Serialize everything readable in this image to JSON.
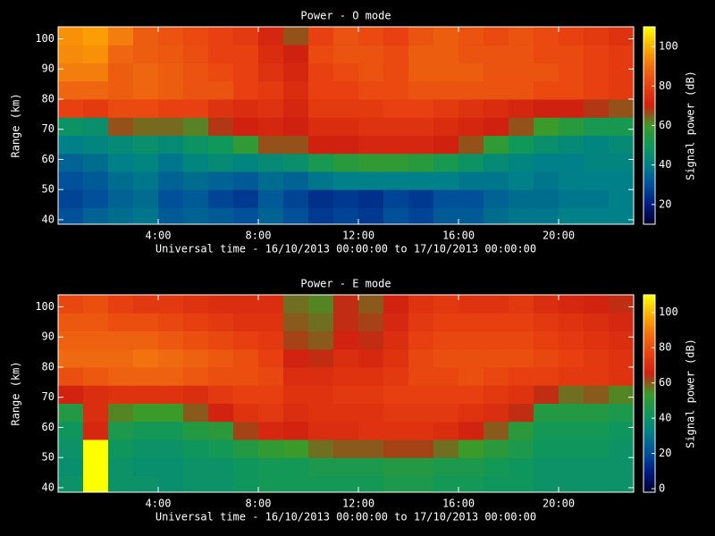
{
  "chart_data": [
    {
      "type": "heatmap",
      "title": "Power - O mode",
      "xlabel": "Universal time - 16/10/2013 00:00:00 to 17/10/2013 00:00:00",
      "ylabel": "Range (km)",
      "colorbar_label": "Signal power (dB)",
      "x_bins": [
        0,
        1,
        2,
        3,
        4,
        5,
        6,
        7,
        8,
        9,
        10,
        11,
        12,
        13,
        14,
        15,
        16,
        17,
        18,
        19,
        20,
        21,
        22,
        23
      ],
      "y_bins": [
        38.5,
        44,
        50,
        56,
        62,
        68,
        74,
        80,
        86,
        92,
        98,
        104
      ],
      "values": [
        [
          30,
          34,
          36,
          38,
          32,
          34,
          32,
          30,
          34,
          30,
          26,
          28,
          26,
          30,
          28,
          32,
          32,
          36,
          38,
          38,
          40,
          40,
          40
        ],
        [
          28,
          30,
          34,
          36,
          30,
          32,
          28,
          26,
          32,
          28,
          24,
          26,
          24,
          28,
          26,
          30,
          30,
          34,
          36,
          36,
          38,
          38,
          40
        ],
        [
          30,
          32,
          36,
          38,
          34,
          36,
          34,
          32,
          36,
          34,
          38,
          40,
          40,
          40,
          40,
          40,
          38,
          38,
          40,
          38,
          40,
          40,
          40
        ],
        [
          34,
          36,
          40,
          42,
          38,
          42,
          44,
          42,
          44,
          46,
          52,
          56,
          58,
          58,
          56,
          52,
          48,
          44,
          42,
          40,
          40,
          42,
          42
        ],
        [
          40,
          42,
          44,
          46,
          44,
          48,
          50,
          58,
          66,
          66,
          70,
          70,
          72,
          72,
          72,
          70,
          66,
          58,
          50,
          46,
          44,
          42,
          44
        ],
        [
          48,
          46,
          66,
          64,
          64,
          62,
          68,
          70,
          72,
          70,
          74,
          74,
          76,
          76,
          76,
          74,
          72,
          70,
          66,
          60,
          56,
          52,
          52
        ],
        [
          80,
          78,
          82,
          82,
          80,
          80,
          76,
          74,
          76,
          72,
          78,
          78,
          78,
          80,
          80,
          78,
          76,
          74,
          72,
          70,
          70,
          68,
          66
        ],
        [
          88,
          88,
          86,
          88,
          86,
          84,
          84,
          80,
          78,
          74,
          80,
          80,
          82,
          82,
          84,
          84,
          84,
          84,
          84,
          82,
          82,
          80,
          78
        ],
        [
          92,
          92,
          86,
          88,
          86,
          84,
          82,
          80,
          76,
          72,
          80,
          82,
          84,
          82,
          86,
          86,
          86,
          84,
          84,
          84,
          82,
          80,
          78
        ],
        [
          94,
          95,
          88,
          86,
          85,
          83,
          80,
          80,
          74,
          70,
          82,
          84,
          84,
          82,
          86,
          86,
          84,
          84,
          84,
          82,
          82,
          80,
          78
        ],
        [
          95,
          97,
          92,
          86,
          84,
          82,
          80,
          78,
          72,
          66,
          80,
          84,
          82,
          80,
          84,
          86,
          84,
          82,
          84,
          82,
          80,
          78,
          76
        ]
      ],
      "xlim": [
        0,
        23
      ],
      "ylim": [
        38.5,
        104
      ],
      "xticks": [
        {
          "value": 4,
          "label": "4:00"
        },
        {
          "value": 8,
          "label": "8:00"
        },
        {
          "value": 12,
          "label": "12:00"
        },
        {
          "value": 16,
          "label": "16:00"
        },
        {
          "value": 20,
          "label": "20:00"
        }
      ],
      "yticks": [
        40,
        50,
        60,
        70,
        80,
        90,
        100
      ],
      "clim": [
        10,
        110
      ],
      "cticks": [
        20,
        40,
        60,
        80,
        100
      ],
      "colors": [
        "#000028",
        "#001a80",
        "#00509a",
        "#008088",
        "#10985a",
        "#3a9a2a",
        "#d02010",
        "#e84010",
        "#f07010",
        "#ffb000",
        "#ffff00"
      ]
    },
    {
      "type": "heatmap",
      "title": "Power - E mode",
      "xlabel": "Universal time - 16/10/2013 00:00:00 to 17/10/2013 00:00:00",
      "ylabel": "Range (km)",
      "colorbar_label": "Signal power (dB)",
      "x_bins": [
        0,
        1,
        2,
        3,
        4,
        5,
        6,
        7,
        8,
        9,
        10,
        11,
        12,
        13,
        14,
        15,
        16,
        17,
        18,
        19,
        20,
        21,
        22,
        23
      ],
      "y_bins": [
        38.5,
        44,
        50,
        56,
        62,
        68,
        74,
        80,
        86,
        92,
        98,
        104
      ],
      "values": [
        [
          40,
          110,
          40,
          40,
          38,
          40,
          40,
          42,
          44,
          44,
          44,
          44,
          44,
          46,
          46,
          44,
          44,
          42,
          42,
          40,
          40,
          40,
          40
        ],
        [
          38,
          110,
          40,
          38,
          38,
          40,
          40,
          42,
          44,
          44,
          46,
          46,
          46,
          48,
          48,
          46,
          46,
          44,
          42,
          40,
          40,
          40,
          40
        ],
        [
          40,
          110,
          42,
          40,
          40,
          42,
          44,
          48,
          52,
          54,
          58,
          60,
          60,
          62,
          62,
          58,
          54,
          50,
          46,
          42,
          42,
          42,
          40
        ],
        [
          42,
          68,
          46,
          44,
          44,
          48,
          50,
          62,
          68,
          66,
          70,
          70,
          72,
          72,
          72,
          70,
          66,
          60,
          50,
          44,
          44,
          44,
          42
        ],
        [
          48,
          70,
          56,
          54,
          54,
          60,
          66,
          72,
          74,
          70,
          72,
          72,
          72,
          74,
          74,
          74,
          72,
          70,
          64,
          48,
          48,
          48,
          46
        ],
        [
          66,
          70,
          72,
          72,
          72,
          70,
          74,
          76,
          76,
          72,
          72,
          74,
          74,
          76,
          76,
          76,
          76,
          74,
          72,
          64,
          58,
          60,
          56
        ],
        [
          80,
          82,
          84,
          84,
          84,
          82,
          80,
          80,
          78,
          70,
          70,
          72,
          72,
          74,
          78,
          78,
          80,
          78,
          76,
          76,
          74,
          74,
          72
        ],
        [
          86,
          86,
          86,
          88,
          86,
          84,
          82,
          80,
          76,
          66,
          64,
          70,
          68,
          72,
          78,
          80,
          80,
          80,
          80,
          78,
          76,
          74,
          72
        ],
        [
          84,
          84,
          84,
          84,
          82,
          80,
          78,
          76,
          74,
          62,
          60,
          66,
          64,
          70,
          76,
          78,
          78,
          78,
          78,
          76,
          74,
          72,
          70
        ],
        [
          82,
          82,
          80,
          80,
          78,
          76,
          74,
          72,
          72,
          60,
          58,
          64,
          62,
          68,
          74,
          76,
          76,
          76,
          76,
          74,
          72,
          70,
          68
        ],
        [
          78,
          80,
          76,
          74,
          74,
          72,
          70,
          70,
          70,
          58,
          56,
          64,
          60,
          66,
          72,
          74,
          72,
          72,
          74,
          70,
          68,
          66,
          64
        ]
      ],
      "xlim": [
        0,
        23
      ],
      "ylim": [
        38.5,
        104
      ],
      "xticks": [
        {
          "value": 4,
          "label": "4:00"
        },
        {
          "value": 8,
          "label": "8:00"
        },
        {
          "value": 12,
          "label": "12:00"
        },
        {
          "value": 16,
          "label": "16:00"
        },
        {
          "value": 20,
          "label": "20:00"
        }
      ],
      "yticks": [
        40,
        50,
        60,
        70,
        80,
        90,
        100
      ],
      "clim": [
        -2,
        110
      ],
      "cticks": [
        0,
        20,
        40,
        60,
        80,
        100
      ],
      "colors": [
        "#000028",
        "#001a80",
        "#00509a",
        "#008088",
        "#10985a",
        "#3a9a2a",
        "#d02010",
        "#e84010",
        "#f07010",
        "#ffb000",
        "#ffff00"
      ]
    }
  ]
}
